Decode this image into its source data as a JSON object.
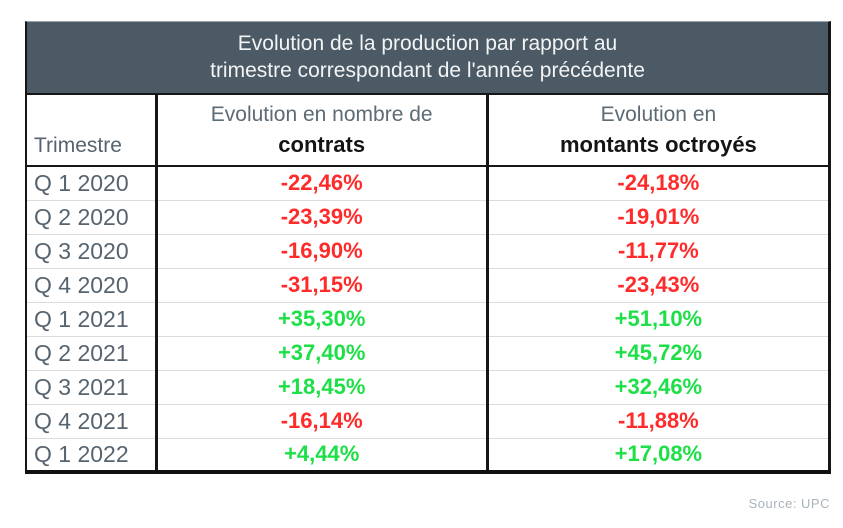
{
  "page": {
    "source_note": "Source: UPC"
  },
  "colors": {
    "header_bg": "#4b5a64",
    "label": "#57646f",
    "negative": "#ff2b2b",
    "positive": "#1ddf47"
  },
  "table": {
    "title_line1": "Evolution de la production par rapport au",
    "title_line2": "trimestre correspondant de l'année précédente",
    "columns": {
      "trimestre": "Trimestre",
      "col2_line1": "Evolution en nombre de",
      "col2_line2": "contrats",
      "col3_line1": "Evolution en",
      "col3_line2": "montants octroyés"
    },
    "rows": [
      {
        "trimestre": "Q 1 2020",
        "contrats": "-22,46%",
        "montants": "-24,18%"
      },
      {
        "trimestre": "Q 2 2020",
        "contrats": "-23,39%",
        "montants": "-19,01%"
      },
      {
        "trimestre": "Q 3 2020",
        "contrats": "-16,90%",
        "montants": "-11,77%"
      },
      {
        "trimestre": "Q 4 2020",
        "contrats": "-31,15%",
        "montants": "-23,43%"
      },
      {
        "trimestre": "Q 1 2021",
        "contrats": "+35,30%",
        "montants": "+51,10%"
      },
      {
        "trimestre": "Q 2 2021",
        "contrats": "+37,40%",
        "montants": "+45,72%"
      },
      {
        "trimestre": "Q 3 2021",
        "contrats": "+18,45%",
        "montants": "+32,46%"
      },
      {
        "trimestre": "Q 4 2021",
        "contrats": "-16,14%",
        "montants": "-11,88%"
      },
      {
        "trimestre": "Q 1 2022",
        "contrats": "+4,44%",
        "montants": "+17,08%"
      }
    ]
  },
  "chart_data": {
    "type": "table",
    "title": "Evolution de la production par rapport au trimestre correspondant de l'année précédente",
    "columns": [
      "Trimestre",
      "Evolution en nombre de contrats",
      "Evolution en montants octroyés"
    ],
    "rows": [
      [
        "Q 1 2020",
        "-22,46%",
        "-24,18%"
      ],
      [
        "Q 2 2020",
        "-23,39%",
        "-19,01%"
      ],
      [
        "Q 3 2020",
        "-16,90%",
        "-11,77%"
      ],
      [
        "Q 4 2020",
        "-31,15%",
        "-23,43%"
      ],
      [
        "Q 1 2021",
        "+35,30%",
        "+51,10%"
      ],
      [
        "Q 2 2021",
        "+37,40%",
        "+45,72%"
      ],
      [
        "Q 3 2021",
        "+18,45%",
        "+32,46%"
      ],
      [
        "Q 4 2021",
        "-16,14%",
        "-11,88%"
      ],
      [
        "Q 1 2022",
        "+4,44%",
        "+17,08%"
      ]
    ],
    "series": [
      {
        "name": "Evolution en nombre de contrats (%)",
        "values": [
          -22.46,
          -23.39,
          -16.9,
          -31.15,
          35.3,
          37.4,
          18.45,
          -16.14,
          4.44
        ]
      },
      {
        "name": "Evolution en montants octroyés (%)",
        "values": [
          -24.18,
          -19.01,
          -11.77,
          -23.43,
          51.1,
          45.72,
          32.46,
          -11.88,
          17.08
        ]
      }
    ],
    "categories": [
      "Q 1 2020",
      "Q 2 2020",
      "Q 3 2020",
      "Q 4 2020",
      "Q 1 2021",
      "Q 2 2021",
      "Q 3 2021",
      "Q 4 2021",
      "Q 1 2022"
    ],
    "color_coding": "negative values red, positive values green",
    "source": "UPC"
  }
}
